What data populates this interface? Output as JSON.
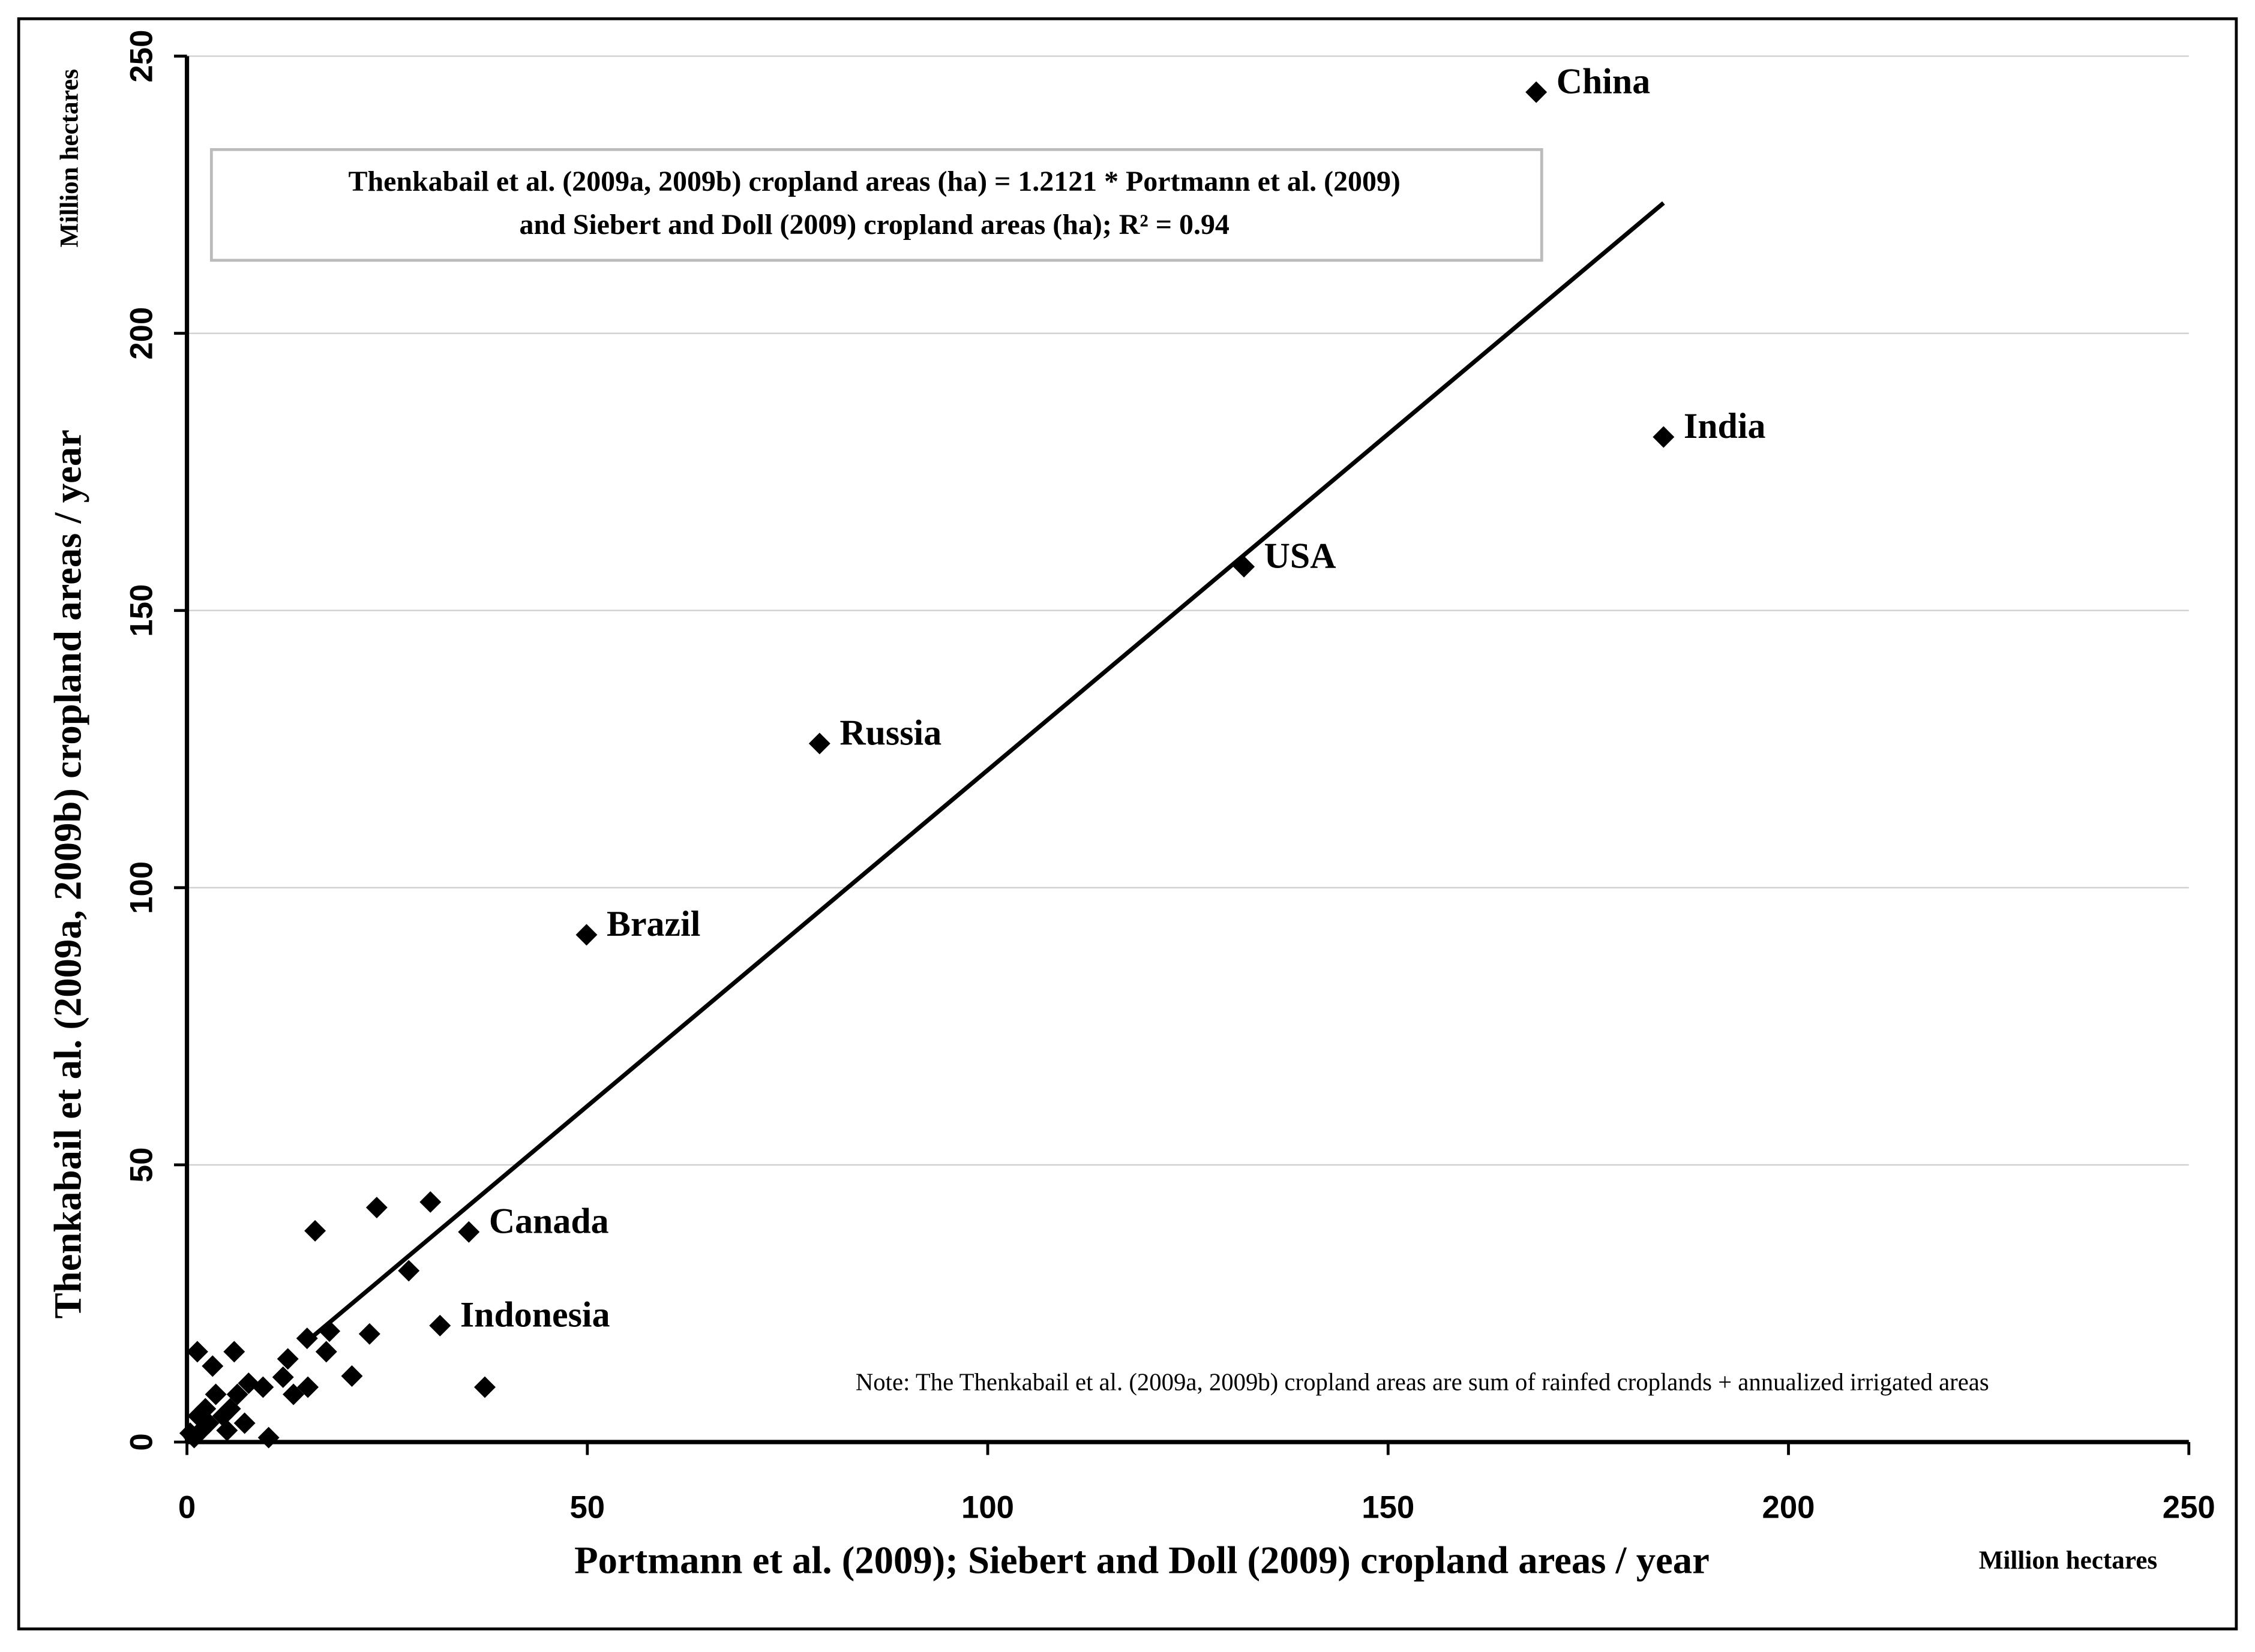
{
  "chart_data": {
    "type": "scatter",
    "annotation": [
      "Thenkabail et al. (2009a, 2009b) cropland areas (ha) = 1.2121 * Portmann et al. (2009)",
      "and Siebert and Doll (2009) cropland areas (ha); R² = 0.94"
    ],
    "note": "Note: The Thenkabail et al. (2009a, 2009b) cropland areas are sum of  rainfed  croplands + annualized irrigated areas",
    "x_label": "Portmann et al. (2009); Siebert and Doll (2009) cropland areas / year",
    "x_unit": "Million hectares",
    "y_label": "Thenkabail et al. (2009a, 2009b) cropland areas / year",
    "y_unit": "Million hectares",
    "xlim": [
      0,
      250
    ],
    "ylim": [
      0,
      250
    ],
    "xticks": [
      0,
      50,
      100,
      150,
      200,
      250
    ],
    "yticks": [
      0,
      50,
      100,
      150,
      200,
      250
    ],
    "grid": "y",
    "color": "#000000",
    "x": [
      168.5,
      184.4,
      132.0,
      79.0,
      49.9,
      35.2,
      31.6,
      16.0,
      23.7,
      30.4,
      27.7,
      37.2,
      22.8,
      20.6,
      17.8,
      17.4,
      15.0,
      15.1,
      12.6,
      13.3,
      12.0,
      10.2,
      9.5,
      7.7,
      5.9,
      3.2,
      1.3,
      7.2,
      5.4,
      3.6,
      4.5,
      2.7,
      1.8,
      0.9,
      0.4,
      6.3,
      5.0,
      2.3,
      1.4
    ],
    "y": [
      243.5,
      181.3,
      157.9,
      126.0,
      91.5,
      37.9,
      21.0,
      38.1,
      42.3,
      43.3,
      30.9,
      9.9,
      19.5,
      11.9,
      20.0,
      16.3,
      18.7,
      9.9,
      15.0,
      8.6,
      11.7,
      0.8,
      9.9,
      10.6,
      16.3,
      13.7,
      16.3,
      3.4,
      6.0,
      8.6,
      4.7,
      3.4,
      2.1,
      0.8,
      1.6,
      8.6,
      2.1,
      6.0,
      4.7
    ],
    "point_labels": [
      "China",
      "India",
      "USA",
      "Russia",
      "Brazil",
      "Canada",
      "Indonesia",
      null,
      null,
      null,
      null,
      null,
      null,
      null,
      null,
      null,
      null,
      null,
      null,
      null,
      null,
      null,
      null,
      null,
      null,
      null,
      null,
      null,
      null,
      null,
      null,
      null,
      null,
      null,
      null,
      null,
      null,
      null,
      null
    ],
    "trendline": {
      "slope": 1.2121,
      "x_range": [
        14.5,
        184.4
      ]
    }
  }
}
